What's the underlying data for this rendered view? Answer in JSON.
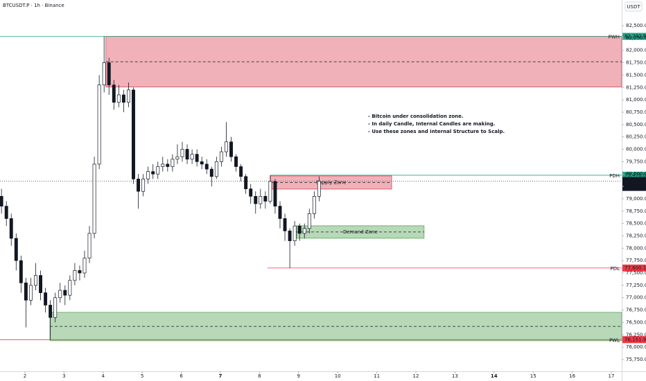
{
  "header": {
    "symbol": "BTCUSDT.P · 1h · Binance",
    "currency": "USDT"
  },
  "chart_data": {
    "type": "candlestick",
    "x": [
      1.4,
      1.525,
      1.65,
      1.775,
      1.9,
      2.025,
      2.15,
      2.275,
      2.4,
      2.525,
      2.65,
      2.775,
      2.9,
      3.025,
      3.15,
      3.275,
      3.4,
      3.525,
      3.65,
      3.775,
      3.9,
      4.025,
      4.15,
      4.275,
      4.4,
      4.525,
      4.65,
      4.775,
      4.9,
      5.025,
      5.15,
      5.275,
      5.4,
      5.525,
      5.65,
      5.775,
      5.9,
      6.025,
      6.15,
      6.275,
      6.4,
      6.525,
      6.65,
      6.775,
      6.9,
      7.025,
      7.15,
      7.275,
      7.4,
      7.525,
      7.65,
      7.775,
      7.9,
      8.025,
      8.15,
      8.275,
      8.4,
      8.525,
      8.65,
      8.775,
      8.9,
      9.025,
      9.15,
      9.275,
      9.4,
      9.525
    ],
    "open": [
      79050,
      78850,
      78600,
      78200,
      77750,
      77300,
      76950,
      77250,
      77450,
      77100,
      76850,
      76600,
      77000,
      77150,
      77050,
      77350,
      77550,
      77500,
      77800,
      78300,
      79700,
      81300,
      81750,
      81300,
      80950,
      81100,
      80950,
      81200,
      79400,
      79150,
      79400,
      79550,
      79500,
      79650,
      79700,
      79650,
      79800,
      79850,
      80000,
      79800,
      79900,
      79750,
      79700,
      79600,
      79450,
      79750,
      79950,
      80150,
      79850,
      79650,
      79450,
      79200,
      79050,
      78900,
      79050,
      78950,
      79350,
      78850,
      78600,
      78350,
      78150,
      78450,
      78300,
      78400,
      78700,
      79050
    ],
    "high": [
      79200,
      78950,
      78700,
      78300,
      77850,
      77400,
      77400,
      77700,
      77550,
      77200,
      76950,
      77100,
      77300,
      77250,
      77450,
      77700,
      77650,
      77950,
      78450,
      79850,
      81500,
      82282.8,
      81850,
      81400,
      81300,
      81200,
      81350,
      81250,
      79500,
      79500,
      79650,
      79700,
      79750,
      79850,
      79800,
      79900,
      80100,
      80150,
      80100,
      80000,
      80000,
      79850,
      79800,
      79650,
      79850,
      80050,
      80550,
      80250,
      79900,
      79700,
      79500,
      79300,
      79150,
      79200,
      79150,
      79476,
      79400,
      78950,
      78700,
      78400,
      78550,
      78500,
      78500,
      78800,
      79150,
      79450
    ],
    "low": [
      78700,
      78450,
      78050,
      77550,
      77100,
      76400,
      76850,
      77150,
      76950,
      76700,
      76152,
      76500,
      76900,
      76850,
      76950,
      77250,
      77350,
      77400,
      77700,
      78200,
      79600,
      81150,
      81100,
      80800,
      80850,
      80750,
      80850,
      79300,
      78800,
      79050,
      79300,
      79400,
      79400,
      79550,
      79550,
      79550,
      79700,
      79750,
      79700,
      79700,
      79650,
      79600,
      79500,
      79250,
      79400,
      79650,
      79850,
      79750,
      79550,
      79350,
      79100,
      78900,
      78700,
      78800,
      78800,
      78900,
      78700,
      78400,
      78150,
      77600.1,
      78050,
      78150,
      78200,
      78300,
      78600,
      78950
    ],
    "close": [
      78850,
      78600,
      78200,
      77750,
      77300,
      76950,
      77250,
      77450,
      77100,
      76850,
      76600,
      77000,
      77150,
      77050,
      77350,
      77550,
      77500,
      77800,
      78300,
      79700,
      81300,
      81750,
      81300,
      80950,
      81100,
      80950,
      81200,
      79400,
      79150,
      79400,
      79550,
      79500,
      79650,
      79700,
      79650,
      79800,
      79850,
      80000,
      79800,
      79900,
      79750,
      79700,
      79600,
      79450,
      79750,
      79950,
      80150,
      79850,
      79650,
      79450,
      79200,
      79050,
      78900,
      79050,
      78950,
      79350,
      78850,
      78600,
      78350,
      78150,
      78450,
      78300,
      78400,
      78700,
      79050,
      79355.1
    ],
    "up_color": "#ffffff",
    "down_color": "#131722",
    "xlim": [
      1.362,
      17.266
    ],
    "xticks": [
      2,
      3,
      4,
      5,
      6,
      7,
      8,
      9,
      10,
      11,
      12,
      13,
      14,
      15,
      16,
      17
    ],
    "bold_xticks": [
      7,
      14
    ],
    "ylim": [
      75512,
      83018
    ],
    "yticks": [
      {
        "value": 75750,
        "label": "75,750.0"
      },
      {
        "value": 76000,
        "label": "76,000.0"
      },
      {
        "value": 76250,
        "label": "76,250.0"
      },
      {
        "value": 76500,
        "label": "76,500.0"
      },
      {
        "value": 76750,
        "label": "76,750.0"
      },
      {
        "value": 77000,
        "label": "77,000.0"
      },
      {
        "value": 77250,
        "label": "77,250.0"
      },
      {
        "value": 77500,
        "label": "77,500.0"
      },
      {
        "value": 77750,
        "label": "77,750.0"
      },
      {
        "value": 78000,
        "label": "78,000.0"
      },
      {
        "value": 78250,
        "label": "78,250.0"
      },
      {
        "value": 78500,
        "label": "78,500.0"
      },
      {
        "value": 78750,
        "label": "78,750.0"
      },
      {
        "value": 79000,
        "label": "79,000.0"
      },
      {
        "value": 79250,
        "label": "79,250.0"
      },
      {
        "value": 79500,
        "label": "79,500.0"
      },
      {
        "value": 79750,
        "label": "79,750.0"
      },
      {
        "value": 80000,
        "label": "80,000.0"
      },
      {
        "value": 80250,
        "label": "80,250.0"
      },
      {
        "value": 80500,
        "label": "80,500.0"
      },
      {
        "value": 80750,
        "label": "80,750.0"
      },
      {
        "value": 81000,
        "label": "81,000.0"
      },
      {
        "value": 81250,
        "label": "81,250.0"
      },
      {
        "value": 81500,
        "label": "81,500.0"
      },
      {
        "value": 81750,
        "label": "81,750.0"
      },
      {
        "value": 82000,
        "label": "82,000.0"
      },
      {
        "value": 82250,
        "label": "82,250.0"
      },
      {
        "value": 82500,
        "label": "82,500.0"
      }
    ],
    "zones": [
      {
        "from": 4.07,
        "top": 82282.8,
        "bottom": 81260,
        "mid": 81770,
        "color": "rgba(220,70,85,0.42)",
        "border": "#d9435a"
      },
      {
        "from": 8.28,
        "to": 11.38,
        "top": 79462,
        "bottom": 79196,
        "mid": 79330,
        "label": "Supply Zone",
        "color": "rgba(220,70,85,0.42)",
        "border": "#d9435a"
      },
      {
        "from": 8.95,
        "to": 12.21,
        "top": 78454,
        "bottom": 78202,
        "mid": 78328,
        "label": "Demand Zone",
        "color": "rgba(76,160,76,0.4)",
        "border": "#5aa55a"
      },
      {
        "from": 2.64,
        "top": 76704,
        "bottom": 76130,
        "mid": 76420,
        "color": "rgba(76,160,76,0.4)",
        "border": "#5aa55a"
      }
    ],
    "levels": [
      {
        "name": "PWH",
        "from": 1.362,
        "value": 82282.8,
        "label": "82,282.8",
        "color": "#22a884"
      },
      {
        "name": "PDH",
        "from": 8.28,
        "value": 79476,
        "label": "79,476.0",
        "color": "#22a884"
      },
      {
        "name": "PDL",
        "from": 8.2,
        "value": 77600.1,
        "label": "77,600.1",
        "color": "#f23645"
      },
      {
        "name": "PWL",
        "from": 1.362,
        "value": 76151.9,
        "label": "76,151.9",
        "color": "#f23645"
      }
    ],
    "last": {
      "value": 79355.1,
      "label": "79,355.1",
      "countdown": "55:31"
    },
    "annotation": [
      "- Bitcoin under consolidation zone.",
      "- In daily Candle, Internal Candles are making.",
      "- Use these zones and internal Structure to Scalp."
    ]
  }
}
